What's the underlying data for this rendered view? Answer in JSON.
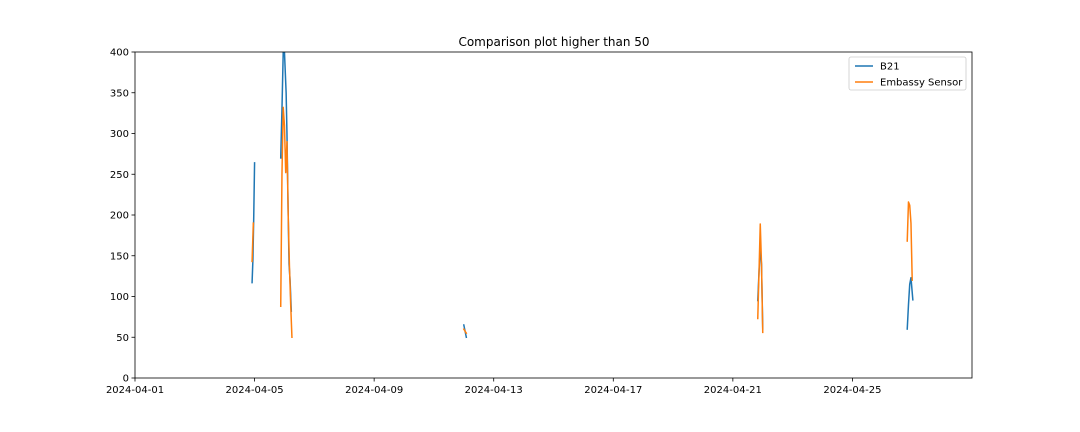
{
  "chart_data": {
    "type": "line",
    "title": "Comparison plot higher than 50",
    "xlabel": "",
    "ylabel": "",
    "x_axis_kind": "date",
    "xlim": [
      "2024-04-01T00:00",
      "2024-04-29T00:00"
    ],
    "ylim": [
      0,
      400
    ],
    "x_ticks": [
      "2024-04-01",
      "2024-04-05",
      "2024-04-09",
      "2024-04-13",
      "2024-04-17",
      "2024-04-21",
      "2024-04-25"
    ],
    "y_ticks": [
      0,
      50,
      100,
      150,
      200,
      250,
      300,
      350,
      400
    ],
    "grid": false,
    "legend_position": "top-right",
    "series": [
      {
        "name": "B21",
        "color": "#1f77b4",
        "segments": [
          [
            [
              "2024-04-04T22:00",
              117
            ],
            [
              "2024-04-04T22:40",
              145
            ],
            [
              "2024-04-04T23:20",
              198
            ],
            [
              "2024-04-05T00:00",
              264
            ]
          ],
          [
            [
              "2024-04-05T21:00",
              270
            ],
            [
              "2024-04-05T22:00",
              330
            ],
            [
              "2024-04-05T23:00",
              400
            ],
            [
              "2024-04-06T00:00",
              400
            ],
            [
              "2024-04-06T01:20",
              350
            ],
            [
              "2024-04-06T02:00",
              300
            ],
            [
              "2024-04-06T02:30",
              250
            ],
            [
              "2024-04-06T03:00",
              200
            ],
            [
              "2024-04-06T03:40",
              140
            ],
            [
              "2024-04-06T04:30",
              120
            ],
            [
              "2024-04-06T05:30",
              82
            ]
          ],
          [
            [
              "2024-04-12T00:00",
              65
            ],
            [
              "2024-04-12T02:00",
              50
            ]
          ],
          [
            [
              "2024-04-21T20:00",
              95
            ],
            [
              "2024-04-21T21:00",
              130
            ],
            [
              "2024-04-21T22:00",
              160
            ],
            [
              "2024-04-21T23:00",
              140
            ],
            [
              "2024-04-22T00:00",
              60
            ]
          ],
          [
            [
              "2024-04-26T20:00",
              60
            ],
            [
              "2024-04-26T21:00",
              90
            ],
            [
              "2024-04-26T22:00",
              115
            ],
            [
              "2024-04-26T23:00",
              123
            ],
            [
              "2024-04-27T00:30",
              96
            ]
          ]
        ]
      },
      {
        "name": "Embassy Sensor",
        "color": "#ff7f0e",
        "segments": [
          [
            [
              "2024-04-04T22:00",
              143
            ],
            [
              "2024-04-04T23:00",
              190
            ]
          ],
          [
            [
              "2024-04-05T21:00",
              88
            ],
            [
              "2024-04-05T22:00",
              250
            ],
            [
              "2024-04-05T23:00",
              332
            ],
            [
              "2024-04-06T00:00",
              310
            ],
            [
              "2024-04-06T01:00",
              252
            ],
            [
              "2024-04-06T02:00",
              290
            ],
            [
              "2024-04-06T03:00",
              200
            ],
            [
              "2024-04-06T04:00",
              137
            ],
            [
              "2024-04-06T05:00",
              90
            ],
            [
              "2024-04-06T06:00",
              50
            ]
          ],
          [
            [
              "2024-04-12T00:00",
              60
            ],
            [
              "2024-04-12T02:00",
              55
            ]
          ],
          [
            [
              "2024-04-21T20:00",
              73
            ],
            [
              "2024-04-21T21:00",
              130
            ],
            [
              "2024-04-21T22:00",
              189
            ],
            [
              "2024-04-21T23:00",
              140
            ],
            [
              "2024-04-22T00:00",
              56
            ]
          ],
          [
            [
              "2024-04-26T20:00",
              168
            ],
            [
              "2024-04-26T21:00",
              216
            ],
            [
              "2024-04-26T22:00",
              212
            ],
            [
              "2024-04-26T23:00",
              190
            ],
            [
              "2024-04-27T00:00",
              120
            ]
          ]
        ]
      }
    ]
  }
}
